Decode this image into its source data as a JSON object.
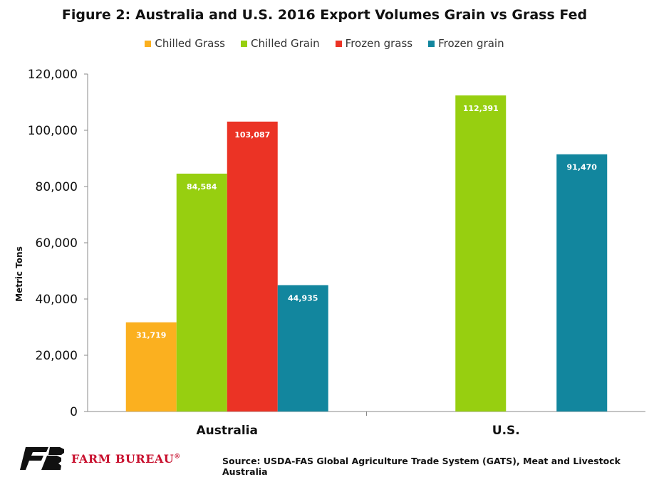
{
  "chart_data": {
    "type": "bar",
    "title": "Figure 2: Australia and U.S. 2016 Export Volumes Grain vs Grass Fed",
    "ylabel": "Metric Tons",
    "xlabel": "",
    "ylim": [
      0,
      120000
    ],
    "yticks": [
      "0",
      "20,000",
      "40,000",
      "60,000",
      "80,000",
      "100,000",
      "120,000"
    ],
    "categories": [
      "Australia",
      "U.S."
    ],
    "legend_position": "top",
    "grid": false,
    "series": [
      {
        "name": "Chilled Grass",
        "color": "#fbb01f",
        "values": [
          31719,
          null
        ],
        "labels": [
          "31,719",
          ""
        ]
      },
      {
        "name": "Chilled Grain",
        "color": "#97cf10",
        "values": [
          84584,
          112391
        ],
        "labels": [
          "84,584",
          "112,391"
        ]
      },
      {
        "name": "Frozen grass",
        "color": "#eb3325",
        "values": [
          103087,
          null
        ],
        "labels": [
          "103,087",
          ""
        ]
      },
      {
        "name": "Frozen grain",
        "color": "#12869e",
        "values": [
          44935,
          91470
        ],
        "labels": [
          "44,935",
          "91,470"
        ]
      }
    ]
  },
  "footer": {
    "logo_text": "FARM BUREAU",
    "logo_mark": "®",
    "source": "Source: USDA-FAS Global Agriculture Trade System (GATS), Meat and Livestock Australia"
  }
}
